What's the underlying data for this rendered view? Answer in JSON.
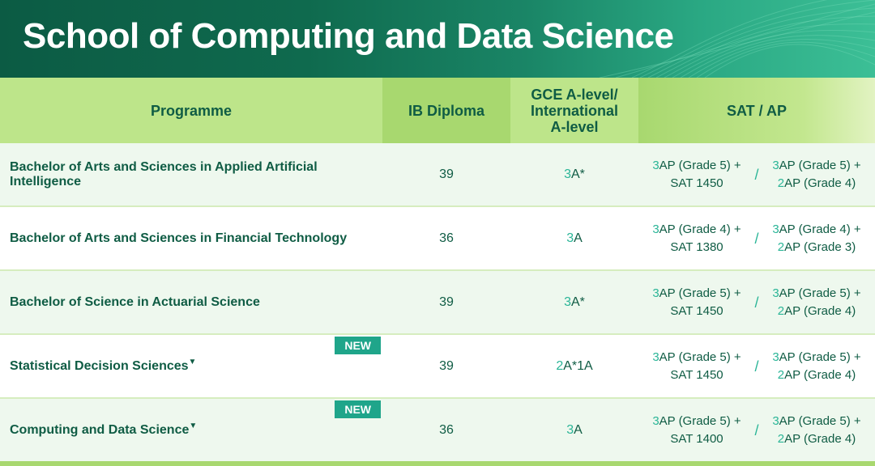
{
  "title": "School of Computing and Data Science",
  "headers": {
    "programme": "Programme",
    "ib": "IB Diploma",
    "gce_line1": "GCE A-level/",
    "gce_line2": "International",
    "gce_line3": "A-level",
    "satap": "SAT / AP"
  },
  "new_badge": "NEW",
  "marker": "▼",
  "separator": "/",
  "rows": [
    {
      "programme": "Bachelor of Arts and Sciences in Applied Artificial Intelligence",
      "ib": "39",
      "gce_count": "3",
      "gce_grade": "A*",
      "opt1_count": "3",
      "opt1_l1": "AP (Grade 5) +",
      "opt1_l2": "SAT 1450",
      "opt2_count": "3",
      "opt2_l1": "AP (Grade 5) +",
      "opt2_count2": "2",
      "opt2_l2": "AP (Grade 4)"
    },
    {
      "programme": "Bachelor of Arts and Sciences in Financial Technology",
      "ib": "36",
      "gce_count": "3",
      "gce_grade": "A",
      "opt1_count": "3",
      "opt1_l1": "AP (Grade 4) +",
      "opt1_l2": "SAT 1380",
      "opt2_count": "3",
      "opt2_l1": "AP (Grade 4) +",
      "opt2_count2": "2",
      "opt2_l2": "AP (Grade 3)"
    },
    {
      "programme": "Bachelor of Science in Actuarial Science",
      "ib": "39",
      "gce_count": "3",
      "gce_grade": "A*",
      "opt1_count": "3",
      "opt1_l1": "AP (Grade 5) +",
      "opt1_l2": "SAT 1450",
      "opt2_count": "3",
      "opt2_l1": "AP (Grade 5) +",
      "opt2_count2": "2",
      "opt2_l2": "AP (Grade 4)"
    },
    {
      "programme": "Statistical Decision Sciences",
      "ib": "39",
      "gce_count": "2",
      "gce_grade": "A*1A",
      "opt1_count": "3",
      "opt1_l1": "AP (Grade 5) +",
      "opt1_l2": "SAT 1450",
      "opt2_count": "3",
      "opt2_l1": "AP (Grade 5) +",
      "opt2_count2": "2",
      "opt2_l2": "AP (Grade 4)"
    },
    {
      "programme": "Computing and Data Science",
      "ib": "36",
      "gce_count": "3",
      "gce_grade": "A",
      "opt1_count": "3",
      "opt1_l1": "AP (Grade 5) +",
      "opt1_l2": "SAT 1400",
      "opt2_count": "3",
      "opt2_l1": "AP (Grade 5) +",
      "opt2_count2": "2",
      "opt2_l2": "AP (Grade 4)"
    }
  ]
}
